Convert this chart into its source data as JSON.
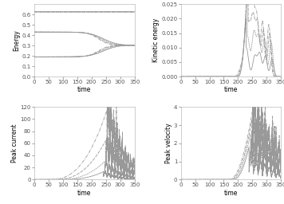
{
  "xlabel": "time",
  "xlim": [
    0,
    350
  ],
  "xticks": [
    0,
    50,
    100,
    150,
    200,
    250,
    300,
    350
  ],
  "energy_ylim": [
    0.0,
    0.7
  ],
  "energy_yticks": [
    0.0,
    0.1,
    0.2,
    0.3,
    0.4,
    0.5,
    0.6
  ],
  "kinetic_ylim": [
    0.0,
    0.025
  ],
  "kinetic_yticks": [
    0.0,
    0.005,
    0.01,
    0.015,
    0.02,
    0.025
  ],
  "current_ylim": [
    0,
    120
  ],
  "current_yticks": [
    0,
    20,
    40,
    60,
    80,
    100,
    120
  ],
  "velocity_ylim": [
    0,
    4.0
  ],
  "velocity_yticks": [
    0,
    1,
    2,
    3,
    4
  ],
  "ylabel_energy": "Energy",
  "ylabel_kinetic": "Kinetic energy",
  "ylabel_current": "Peak current",
  "ylabel_velocity": "Peak velocity",
  "line_color": "#999999",
  "background": "#ffffff",
  "tick_label_size": 5,
  "axis_label_size": 5.5,
  "linewidth": 0.6
}
